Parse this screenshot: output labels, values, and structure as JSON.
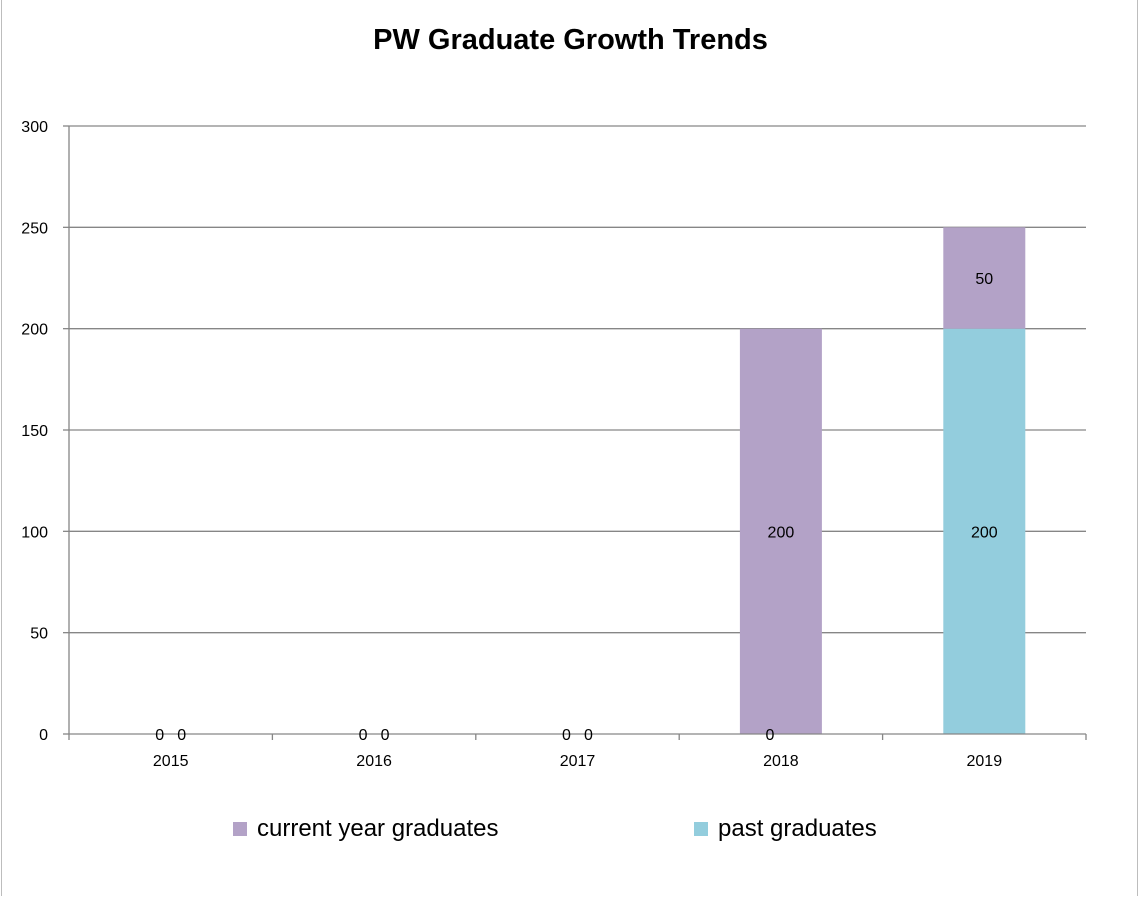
{
  "chart_data": {
    "type": "bar",
    "stacked": true,
    "title": "PW Graduate Growth Trends",
    "xlabel": "",
    "ylabel": "",
    "categories": [
      "2015",
      "2016",
      "2017",
      "2018",
      "2019"
    ],
    "series": [
      {
        "name": "past graduates",
        "color": "#93cddd",
        "values": [
          0,
          0,
          0,
          0,
          200
        ]
      },
      {
        "name": "current year graduates",
        "color": "#b3a2c7",
        "values": [
          0,
          0,
          0,
          200,
          50
        ]
      }
    ],
    "ylim": [
      0,
      300
    ],
    "yticks": [
      0,
      50,
      100,
      150,
      200,
      250,
      300
    ],
    "grid": true,
    "legend_position": "bottom",
    "legend_order": [
      "current year graduates",
      "past graduates"
    ]
  }
}
